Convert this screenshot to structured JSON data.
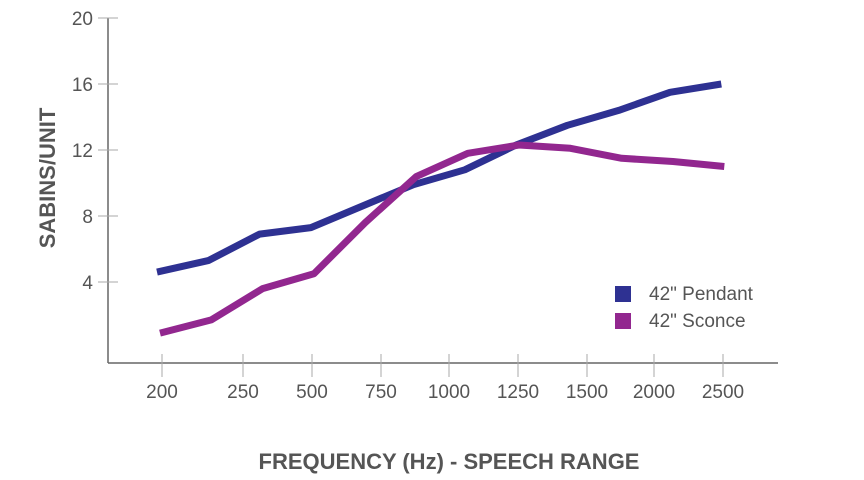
{
  "chart_data": {
    "type": "line",
    "title": "",
    "xlabel": "FREQUENCY (Hz) - SPEECH RANGE",
    "ylabel": "SABINS/UNIT",
    "x_tick_labels": [
      "200",
      "250",
      "500",
      "750",
      "1000",
      "1250",
      "1500",
      "2000",
      "2500"
    ],
    "y_tick_labels": [
      "4",
      "8",
      "12",
      "16",
      "20"
    ],
    "ylim": [
      0,
      20
    ],
    "grid": false,
    "legend_position": "lower right",
    "x": [
      1,
      2,
      3,
      4,
      5,
      6,
      7,
      8,
      9,
      10,
      11,
      12
    ],
    "series": [
      {
        "name": "42\" Pendant",
        "color": "#2e3192",
        "values": [
          4.6,
          5.3,
          6.9,
          7.3,
          8.6,
          9.9,
          10.8,
          12.3,
          13.5,
          14.4,
          15.5,
          16.0
        ]
      },
      {
        "name": "42\" Sconce",
        "color": "#92278f",
        "values": [
          0.9,
          1.7,
          3.6,
          4.5,
          7.6,
          10.4,
          11.8,
          12.3,
          12.1,
          11.5,
          11.3,
          11.0
        ]
      }
    ]
  },
  "legend": {
    "items": [
      {
        "label": "42\" Pendant",
        "color": "#2e3192"
      },
      {
        "label": "42\" Sconce",
        "color": "#92278f"
      }
    ]
  }
}
